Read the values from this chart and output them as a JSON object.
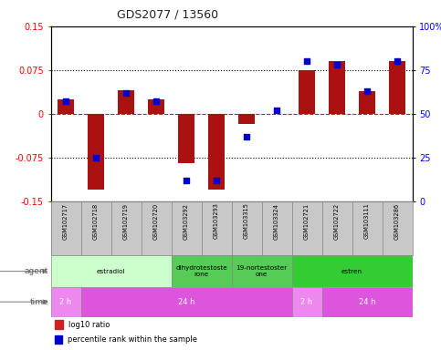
{
  "title": "GDS2077 / 13560",
  "samples": [
    "GSM102717",
    "GSM102718",
    "GSM102719",
    "GSM102720",
    "GSM103292",
    "GSM103293",
    "GSM103315",
    "GSM103324",
    "GSM102721",
    "GSM102722",
    "GSM103111",
    "GSM103286"
  ],
  "log10_ratio": [
    0.025,
    -0.13,
    0.04,
    0.025,
    -0.085,
    -0.13,
    -0.018,
    0.0,
    0.075,
    0.09,
    0.038,
    0.09
  ],
  "percentile_rank": [
    57,
    25,
    62,
    57,
    12,
    12,
    37,
    52,
    80,
    78,
    63,
    80
  ],
  "ylim_left": [
    -0.15,
    0.15
  ],
  "ylim_right": [
    0,
    100
  ],
  "yticks_left": [
    -0.15,
    -0.075,
    0,
    0.075,
    0.15
  ],
  "yticks_right": [
    0,
    25,
    50,
    75,
    100
  ],
  "bar_color": "#aa1111",
  "dot_color": "#0000cc",
  "agent_groups": [
    {
      "label": "estradiol",
      "start": 0,
      "end": 4,
      "color": "#ccffcc"
    },
    {
      "label": "dihydrotestoste\nrone",
      "start": 4,
      "end": 6,
      "color": "#55cc55"
    },
    {
      "label": "19-nortestoster\none",
      "start": 6,
      "end": 8,
      "color": "#55cc55"
    },
    {
      "label": "estren",
      "start": 8,
      "end": 12,
      "color": "#33cc33"
    }
  ],
  "time_groups": [
    {
      "label": "2 h",
      "start": 0,
      "end": 1,
      "color": "#ee88ee"
    },
    {
      "label": "24 h",
      "start": 1,
      "end": 8,
      "color": "#dd55dd"
    },
    {
      "label": "2 h",
      "start": 8,
      "end": 9,
      "color": "#ee88ee"
    },
    {
      "label": "24 h",
      "start": 9,
      "end": 12,
      "color": "#dd55dd"
    }
  ],
  "legend_bar_color": "#cc2222",
  "legend_dot_color": "#0000cc",
  "background_plot": "#ffffff",
  "sample_box_color": "#c8c8c8"
}
